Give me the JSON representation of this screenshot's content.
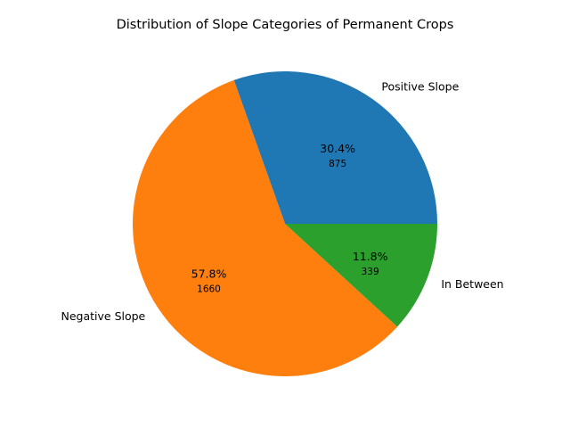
{
  "chart_data": {
    "type": "pie",
    "title": "Distribution of Slope Categories of Permanent Crops",
    "categories": [
      "Positive Slope",
      "Negative Slope",
      "In Between"
    ],
    "values": [
      875,
      1660,
      339
    ],
    "percent_labels": [
      "30.4%",
      "57.8%",
      "11.8%"
    ],
    "value_labels": [
      "875",
      "1660",
      "339"
    ],
    "colors": [
      "#1f77b4",
      "#ff7f0e",
      "#2ca02c"
    ],
    "start_angle_deg": 0,
    "direction": "counterclockwise",
    "legend": "none"
  }
}
